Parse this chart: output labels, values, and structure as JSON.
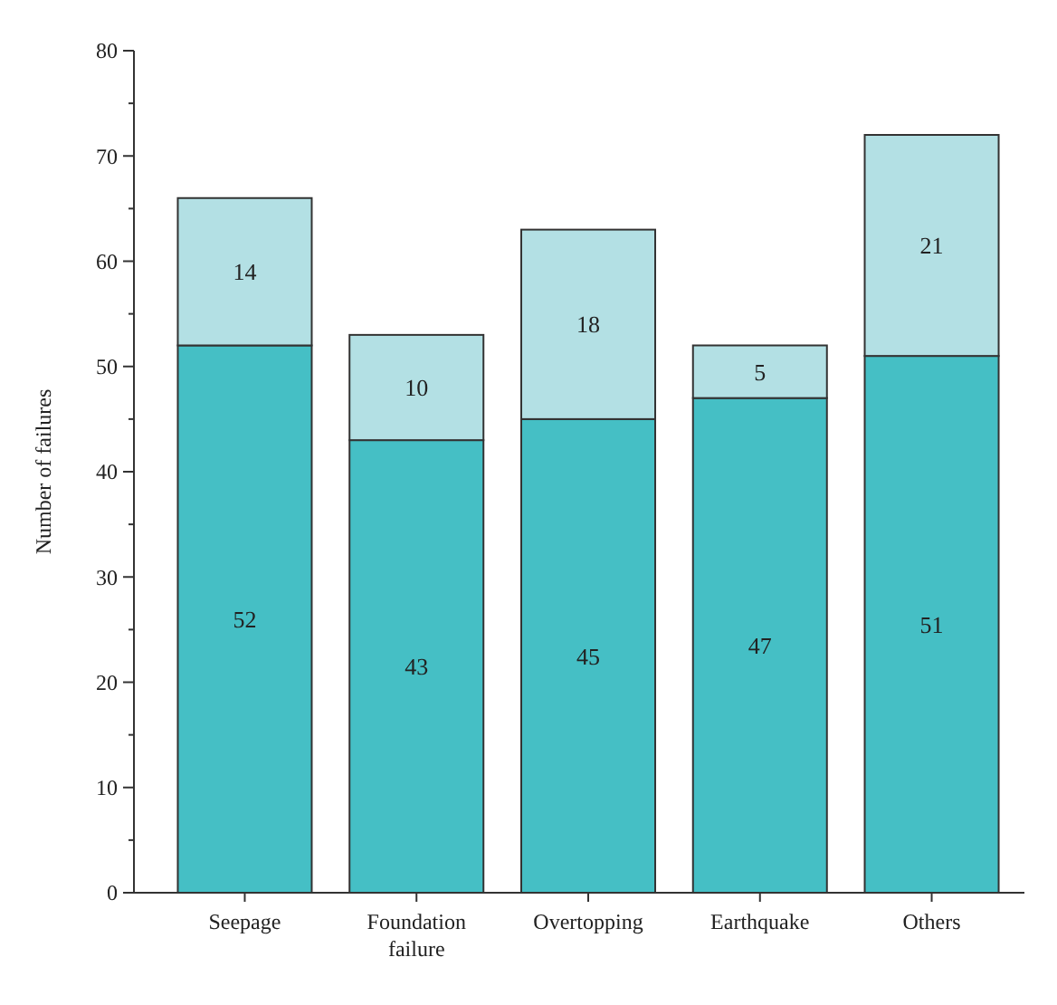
{
  "chart_data": {
    "type": "bar",
    "ylabel": "Number of failures",
    "categories": [
      "Seepage",
      "Foundation failure",
      "Overtopping",
      "Earthquake",
      "Others"
    ],
    "series": [
      {
        "color": "#45bfc5",
        "values": [
          52,
          43,
          45,
          47,
          51
        ]
      },
      {
        "color": "#b3e0e4",
        "values": [
          14,
          10,
          18,
          5,
          21
        ]
      }
    ],
    "stacked": true,
    "data_labels": true,
    "ylim": [
      0,
      80
    ],
    "yticks": [
      0,
      {
        "value": 5,
        "label": null
      },
      10,
      {
        "value": 15,
        "label": null
      },
      20,
      {
        "value": 25,
        "label": null
      },
      30,
      {
        "value": 35,
        "label": null
      },
      40,
      {
        "value": 45,
        "label": null
      },
      50,
      {
        "value": 55,
        "label": null
      },
      60,
      {
        "value": 65,
        "label": null
      },
      70,
      {
        "value": 75,
        "label": null
      },
      80
    ],
    "grid": false
  }
}
